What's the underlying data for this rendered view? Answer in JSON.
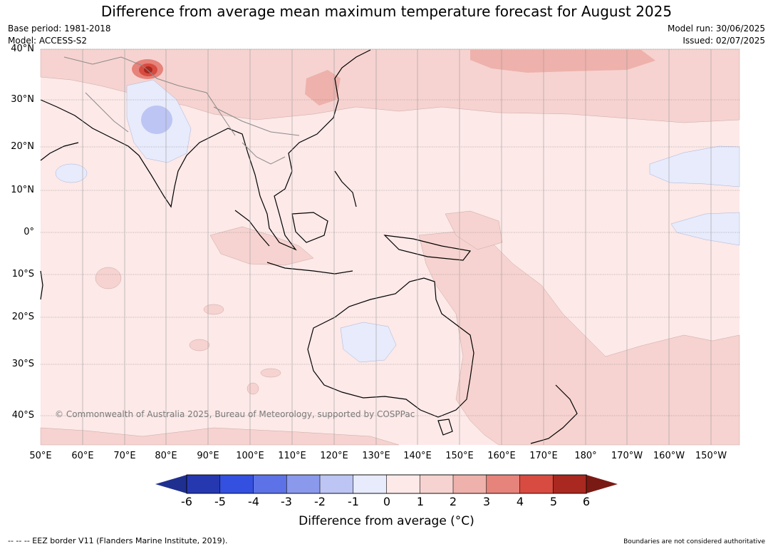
{
  "title": "Difference from average mean maximum temperature forecast for August 2025",
  "meta_left": {
    "base_period": "Base period: 1981-2018",
    "model": "Model: ACCESS-S2"
  },
  "meta_right": {
    "model_run": "Model run: 30/06/2025",
    "issued": "Issued: 02/07/2025"
  },
  "lat_labels": [
    "40°N",
    "30°N",
    "20°N",
    "10°N",
    "0°",
    "10°S",
    "20°S",
    "30°S",
    "40°S"
  ],
  "lon_labels": [
    "50°E",
    "60°E",
    "70°E",
    "80°E",
    "90°E",
    "100°E",
    "110°E",
    "120°E",
    "130°E",
    "140°E",
    "150°E",
    "160°E",
    "170°E",
    "180°",
    "170°W",
    "160°W",
    "150°W"
  ],
  "copyright": "© Commonwealth of Australia 2025, Bureau of Meteorology, supported by COSPPac",
  "colorbar": {
    "ticks": [
      "-6",
      "-5",
      "-4",
      "-3",
      "-2",
      "-1",
      "0",
      "1",
      "2",
      "3",
      "4",
      "5",
      "6"
    ],
    "colors": [
      "#1f2f8f",
      "#2638b0",
      "#3350e0",
      "#5c72e6",
      "#8a99ec",
      "#bcc5f3",
      "#e7ebfb",
      "#fce9e8",
      "#f6d3d0",
      "#eeb1ab",
      "#e6837b",
      "#d84b40",
      "#a9281f",
      "#7a1a14"
    ],
    "label": "Difference from average (°C)"
  },
  "footer_left": "--  --  -- EEZ border V11 (Flanders Marine Institute, 2019).",
  "footer_right": "Boundaries are not considered authoritative"
}
